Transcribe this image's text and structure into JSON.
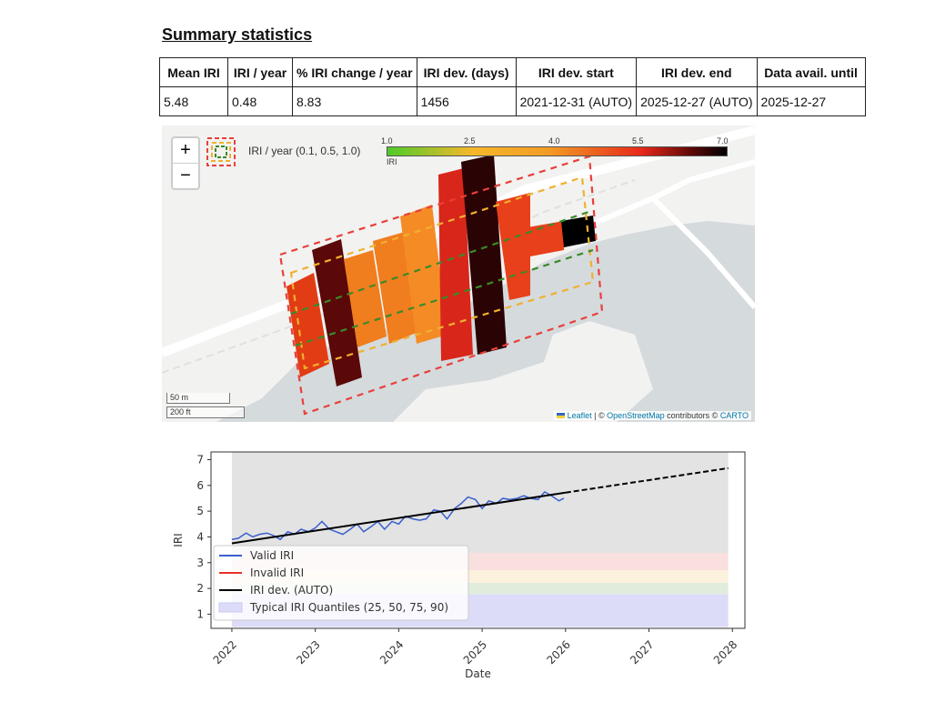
{
  "title": "Summary statistics",
  "table": {
    "headers": [
      "Mean IRI",
      "IRI / year",
      "% IRI change / year",
      "IRI dev. (days)",
      "IRI dev. start",
      "IRI dev. end",
      "Data avail. until"
    ],
    "row": [
      "5.48",
      "0.48",
      "8.83",
      "1456",
      "2021-12-31 (AUTO)",
      "2025-12-27 (AUTO)",
      "2025-12-27"
    ]
  },
  "map": {
    "zoom_in": "+",
    "zoom_out": "−",
    "legend_label": "IRI / year (0.1, 0.5, 1.0)",
    "colorbar": {
      "ticks": [
        "1.0",
        "2.5",
        "4.0",
        "5.5",
        "7.0"
      ],
      "label": "IRI",
      "colors": [
        "#4ecb2a",
        "#f5b82a",
        "#f39a25",
        "#e6281a",
        "#5a0808",
        "#000000"
      ]
    },
    "scale_m": "50 m",
    "scale_ft": "200 ft",
    "attribution": {
      "leaflet": "Leaflet",
      "sep": " | © ",
      "osm": "OpenStreetMap",
      "mid": " contributors © ",
      "carto": "CARTO"
    }
  },
  "chart_data": {
    "type": "line",
    "xlabel": "Date",
    "ylabel": "IRI",
    "xlim": [
      2021.75,
      2028.15
    ],
    "ylim": [
      0.45,
      7.3
    ],
    "xticks": [
      "2022",
      "2023",
      "2024",
      "2025",
      "2026",
      "2027",
      "2028"
    ],
    "yticks": [
      "1",
      "2",
      "3",
      "4",
      "5",
      "6",
      "7"
    ],
    "legend": [
      "Valid IRI",
      "Invalid IRI",
      "IRI dev. (AUTO)",
      "Typical IRI Quantiles (25, 50, 75, 90)"
    ],
    "legend_placement": "lower-left",
    "bands": [
      {
        "from": 0.5,
        "to": 1.78,
        "color": "#dcdcf8"
      },
      {
        "from": 1.78,
        "to": 2.22,
        "color": "#e1eddc"
      },
      {
        "from": 2.22,
        "to": 2.7,
        "color": "#fcf1dc"
      },
      {
        "from": 2.7,
        "to": 3.38,
        "color": "#f9e0de"
      },
      {
        "from": 3.38,
        "to": 7.3,
        "color": "#e3e3e3"
      }
    ],
    "band_x": [
      2022,
      2027.95
    ],
    "trend": {
      "x": [
        2022,
        2026
      ],
      "y": [
        3.75,
        5.72
      ],
      "extrapolated_x": [
        2026,
        2027.95
      ],
      "extrapolated_y": [
        5.72,
        6.67
      ]
    },
    "valid_iri": {
      "color": "#3a5fcd",
      "x": [
        2022.0,
        2022.08,
        2022.17,
        2022.25,
        2022.33,
        2022.42,
        2022.5,
        2022.58,
        2022.67,
        2022.75,
        2022.83,
        2022.92,
        2023.0,
        2023.08,
        2023.17,
        2023.25,
        2023.33,
        2023.42,
        2023.5,
        2023.58,
        2023.67,
        2023.75,
        2023.83,
        2023.92,
        2024.0,
        2024.08,
        2024.17,
        2024.25,
        2024.33,
        2024.42,
        2024.5,
        2024.58,
        2024.67,
        2024.75,
        2024.83,
        2024.92,
        2025.0,
        2025.08,
        2025.17,
        2025.25,
        2025.33,
        2025.42,
        2025.5,
        2025.58,
        2025.67,
        2025.75,
        2025.83,
        2025.92,
        2025.98
      ],
      "y": [
        3.9,
        3.95,
        4.15,
        4.0,
        4.1,
        4.15,
        4.05,
        3.9,
        4.2,
        4.1,
        4.3,
        4.2,
        4.35,
        4.6,
        4.3,
        4.2,
        4.1,
        4.3,
        4.5,
        4.2,
        4.4,
        4.6,
        4.3,
        4.6,
        4.5,
        4.8,
        4.7,
        4.65,
        4.7,
        5.05,
        5.0,
        4.7,
        5.1,
        5.3,
        5.55,
        5.45,
        5.1,
        5.4,
        5.3,
        5.5,
        5.45,
        5.5,
        5.6,
        5.5,
        5.45,
        5.75,
        5.6,
        5.4,
        5.5
      ]
    }
  }
}
